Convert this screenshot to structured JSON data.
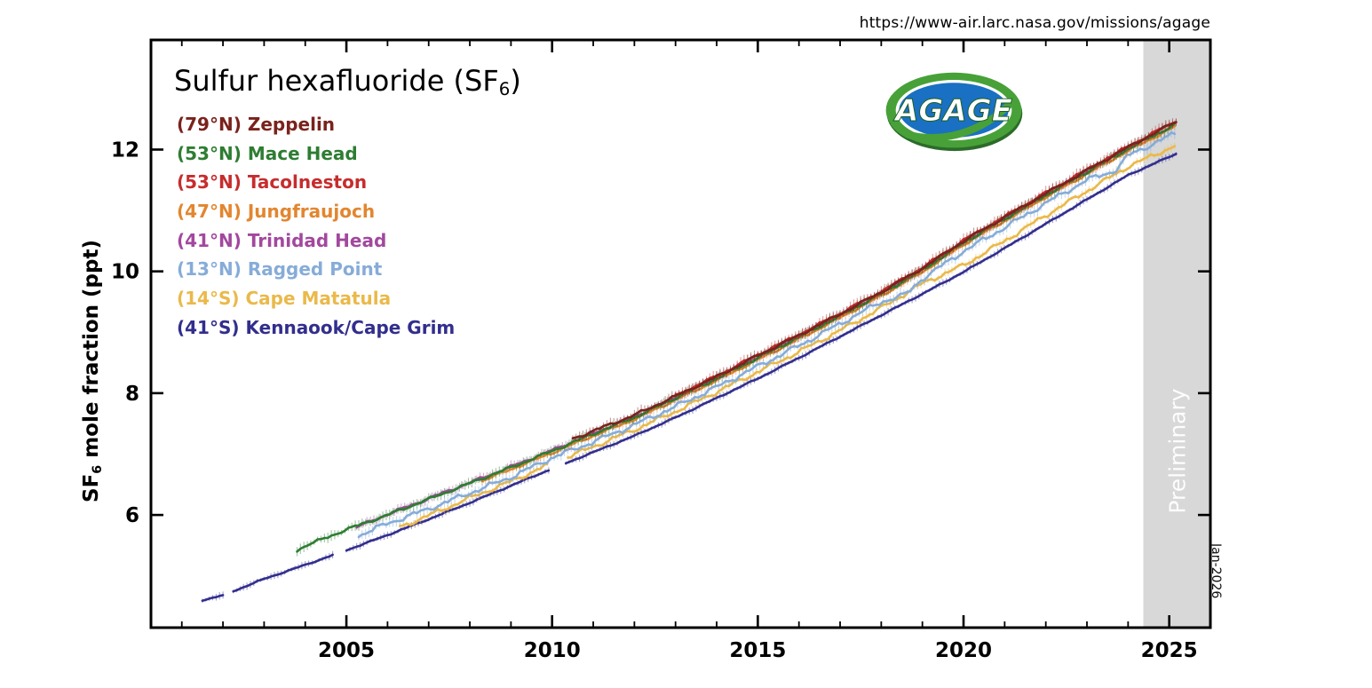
{
  "page": {
    "url_caption": "https://www-air.larc.nasa.gov/missions/agage"
  },
  "title": {
    "text_main": "Sulfur hexafluoride (SF",
    "subscript": "6",
    "text_close": ")"
  },
  "ylabel": {
    "prefix": "SF",
    "subscript": "6",
    "suffix": " mole fraction (ppt)"
  },
  "logo": {
    "text": "AGAGE",
    "outer_green": "#47a138",
    "inner_blue": "#1a70c2"
  },
  "annotations": {
    "preliminary": "Preliminary",
    "date_label": "Jan-2026"
  },
  "legend": {
    "items": [
      {
        "lat": "(79°N)",
        "name": "Zeppelin",
        "color": "#7a221c"
      },
      {
        "lat": "(53°N)",
        "name": "Mace Head",
        "color": "#2e7d32"
      },
      {
        "lat": "(53°N)",
        "name": "Tacolneston",
        "color": "#c62d2d"
      },
      {
        "lat": "(47°N)",
        "name": "Jungfraujoch",
        "color": "#e2862f"
      },
      {
        "lat": "(41°N)",
        "name": "Trinidad Head",
        "color": "#a2489e"
      },
      {
        "lat": "(13°N)",
        "name": "Ragged Point",
        "color": "#86acd8"
      },
      {
        "lat": "(14°S)",
        "name": "Cape Matatula",
        "color": "#eab94a"
      },
      {
        "lat": "(41°S)",
        "name": "Kennaook/Cape Grim",
        "color": "#322e8d"
      }
    ]
  },
  "chart_data": {
    "type": "line",
    "title": "Sulfur hexafluoride (SF6)",
    "xlabel": "",
    "ylabel": "SF6 mole fraction (ppt)",
    "xlim": [
      2000.25,
      2026.0
    ],
    "ylim": [
      4.15,
      13.8
    ],
    "x_ticks": [
      2005,
      2010,
      2015,
      2020,
      2025
    ],
    "x_minor_step": 1,
    "y_ticks": [
      6,
      8,
      10,
      12
    ],
    "grid": false,
    "legend_position": "upper-left",
    "preliminary_band": {
      "start": 2024.37,
      "end": 2026.0,
      "color": "#d8d8d8",
      "label": "Preliminary"
    },
    "axis_end_label": "Jan-2026",
    "series": [
      {
        "name": "Zeppelin",
        "latitude": "79N",
        "color": "#7a221c",
        "noise": 0.03,
        "whisker": 0.14,
        "gaps": [],
        "anchors": [
          [
            2010.5,
            7.25
          ],
          [
            2011,
            7.38
          ],
          [
            2012,
            7.64
          ],
          [
            2013,
            7.95
          ],
          [
            2014,
            8.27
          ],
          [
            2015,
            8.62
          ],
          [
            2016,
            8.95
          ],
          [
            2017,
            9.3
          ],
          [
            2018,
            9.66
          ],
          [
            2019,
            10.05
          ],
          [
            2020,
            10.5
          ],
          [
            2021,
            10.89
          ],
          [
            2022,
            11.28
          ],
          [
            2023,
            11.66
          ],
          [
            2024,
            12.04
          ],
          [
            2025,
            12.4
          ],
          [
            2025.2,
            12.47
          ]
        ]
      },
      {
        "name": "Mace Head",
        "latitude": "53N",
        "color": "#2e7d32",
        "noise": 0.03,
        "whisker": 0.13,
        "gaps": [],
        "anchors": [
          [
            2003.8,
            5.42
          ],
          [
            2004,
            5.49
          ],
          [
            2005,
            5.76
          ],
          [
            2006,
            6.0
          ],
          [
            2007,
            6.26
          ],
          [
            2008,
            6.52
          ],
          [
            2009,
            6.78
          ],
          [
            2010,
            7.05
          ],
          [
            2011,
            7.33
          ],
          [
            2012,
            7.6
          ],
          [
            2013,
            7.92
          ],
          [
            2014,
            8.24
          ],
          [
            2015,
            8.58
          ],
          [
            2016,
            8.92
          ],
          [
            2017,
            9.27
          ],
          [
            2018,
            9.63
          ],
          [
            2019,
            10.02
          ],
          [
            2020,
            10.47
          ],
          [
            2021,
            10.86
          ],
          [
            2022,
            11.25
          ],
          [
            2023,
            11.63
          ],
          [
            2024,
            12.01
          ],
          [
            2025,
            12.36
          ],
          [
            2025.2,
            12.43
          ]
        ]
      },
      {
        "name": "Tacolneston",
        "latitude": "53N",
        "color": "#c62d2d",
        "noise": 0.03,
        "whisker": 0.14,
        "gaps": [],
        "anchors": [
          [
            2013,
            7.96
          ],
          [
            2014,
            8.28
          ],
          [
            2015,
            8.63
          ],
          [
            2016,
            8.96
          ],
          [
            2017,
            9.31
          ],
          [
            2018,
            9.67
          ],
          [
            2019,
            10.06
          ],
          [
            2020,
            10.51
          ],
          [
            2021,
            10.9
          ],
          [
            2022,
            11.29
          ],
          [
            2023,
            11.67
          ],
          [
            2024,
            12.05
          ],
          [
            2025,
            12.41
          ],
          [
            2025.2,
            12.48
          ]
        ]
      },
      {
        "name": "Jungfraujoch",
        "latitude": "47N",
        "color": "#e2862f",
        "noise": 0.028,
        "whisker": 0.11,
        "gaps": [],
        "anchors": [
          [
            2008.3,
            6.56
          ],
          [
            2009,
            6.75
          ],
          [
            2010,
            7.02
          ],
          [
            2011,
            7.3
          ],
          [
            2012,
            7.57
          ],
          [
            2013,
            7.89
          ],
          [
            2014,
            8.21
          ],
          [
            2015,
            8.55
          ],
          [
            2016,
            8.89
          ],
          [
            2017,
            9.24
          ],
          [
            2018,
            9.6
          ],
          [
            2019,
            9.99
          ],
          [
            2020,
            10.44
          ],
          [
            2021,
            10.83
          ],
          [
            2022,
            11.22
          ],
          [
            2023,
            11.6
          ],
          [
            2024,
            11.98
          ],
          [
            2025,
            12.33
          ],
          [
            2025.2,
            12.4
          ]
        ]
      },
      {
        "name": "Trinidad Head",
        "latitude": "41N",
        "color": "#a2489e",
        "noise": 0.03,
        "whisker": 0.12,
        "gaps": [],
        "anchors": [
          [
            2005.25,
            5.8
          ],
          [
            2006,
            6.01
          ],
          [
            2007,
            6.27
          ],
          [
            2008,
            6.53
          ],
          [
            2009,
            6.79
          ],
          [
            2010,
            7.06
          ],
          [
            2011,
            7.34
          ],
          [
            2012,
            7.61
          ],
          [
            2013,
            7.93
          ],
          [
            2014,
            8.25
          ],
          [
            2015,
            8.6
          ],
          [
            2016,
            8.93
          ],
          [
            2017,
            9.28
          ],
          [
            2018,
            9.64
          ],
          [
            2019,
            10.03
          ],
          [
            2020,
            10.48
          ],
          [
            2021,
            10.87
          ],
          [
            2022,
            11.26
          ],
          [
            2023,
            11.64
          ],
          [
            2024,
            12.02
          ]
        ]
      },
      {
        "name": "Ragged Point",
        "latitude": "13N",
        "color": "#86acd8",
        "noise": 0.055,
        "whisker": 0.13,
        "gaps": [],
        "anchors": [
          [
            2005.3,
            5.66
          ],
          [
            2006,
            5.86
          ],
          [
            2007,
            6.1
          ],
          [
            2008,
            6.36
          ],
          [
            2009,
            6.62
          ],
          [
            2010,
            6.94
          ],
          [
            2011,
            7.2
          ],
          [
            2012,
            7.48
          ],
          [
            2013,
            7.78
          ],
          [
            2014,
            8.1
          ],
          [
            2015,
            8.44
          ],
          [
            2016,
            8.78
          ],
          [
            2017,
            9.14
          ],
          [
            2018,
            9.5
          ],
          [
            2018.6,
            9.62
          ],
          [
            2019,
            9.88
          ],
          [
            2020,
            10.33
          ],
          [
            2021,
            10.72
          ],
          [
            2022,
            11.12
          ],
          [
            2023,
            11.5
          ],
          [
            2023.7,
            11.66
          ],
          [
            2024,
            11.9
          ],
          [
            2025,
            12.22
          ],
          [
            2025.2,
            12.28
          ]
        ]
      },
      {
        "name": "Cape Matatula",
        "latitude": "14S",
        "color": "#eab94a",
        "noise": 0.05,
        "whisker": 0.1,
        "gaps": [
          [
            2009.9,
            2010.35
          ]
        ],
        "anchors": [
          [
            2006.3,
            5.8
          ],
          [
            2007,
            5.99
          ],
          [
            2008,
            6.28
          ],
          [
            2009,
            6.55
          ],
          [
            2010,
            6.85
          ],
          [
            2011,
            7.12
          ],
          [
            2012,
            7.4
          ],
          [
            2013,
            7.7
          ],
          [
            2014,
            8.02
          ],
          [
            2015,
            8.35
          ],
          [
            2016,
            8.68
          ],
          [
            2017,
            9.03
          ],
          [
            2018,
            9.4
          ],
          [
            2019,
            9.8
          ],
          [
            2020,
            10.1
          ],
          [
            2021,
            10.5
          ],
          [
            2022,
            10.92
          ],
          [
            2023,
            11.32
          ],
          [
            2024,
            11.72
          ],
          [
            2025,
            12.02
          ],
          [
            2025.2,
            12.08
          ]
        ]
      },
      {
        "name": "Kennaook/Cape Grim",
        "latitude": "41S",
        "color": "#322e8d",
        "noise": 0.012,
        "whisker": 0.09,
        "gaps": [
          [
            2002.0,
            2002.2
          ],
          [
            2004.68,
            2004.95
          ],
          [
            2009.95,
            2010.3
          ]
        ],
        "anchors": [
          [
            2001.5,
            4.6
          ],
          [
            2002,
            4.68
          ],
          [
            2003,
            4.95
          ],
          [
            2004,
            5.18
          ],
          [
            2005,
            5.42
          ],
          [
            2006,
            5.67
          ],
          [
            2007,
            5.93
          ],
          [
            2008,
            6.2
          ],
          [
            2009,
            6.48
          ],
          [
            2010,
            6.76
          ],
          [
            2011,
            7.03
          ],
          [
            2012,
            7.3
          ],
          [
            2013,
            7.6
          ],
          [
            2014,
            7.92
          ],
          [
            2015,
            8.24
          ],
          [
            2016,
            8.58
          ],
          [
            2017,
            8.93
          ],
          [
            2018,
            9.28
          ],
          [
            2019,
            9.63
          ],
          [
            2020,
            9.99
          ],
          [
            2021,
            10.38
          ],
          [
            2022,
            10.78
          ],
          [
            2023,
            11.18
          ],
          [
            2024,
            11.58
          ],
          [
            2025,
            11.88
          ],
          [
            2025.2,
            11.94
          ]
        ]
      }
    ]
  }
}
